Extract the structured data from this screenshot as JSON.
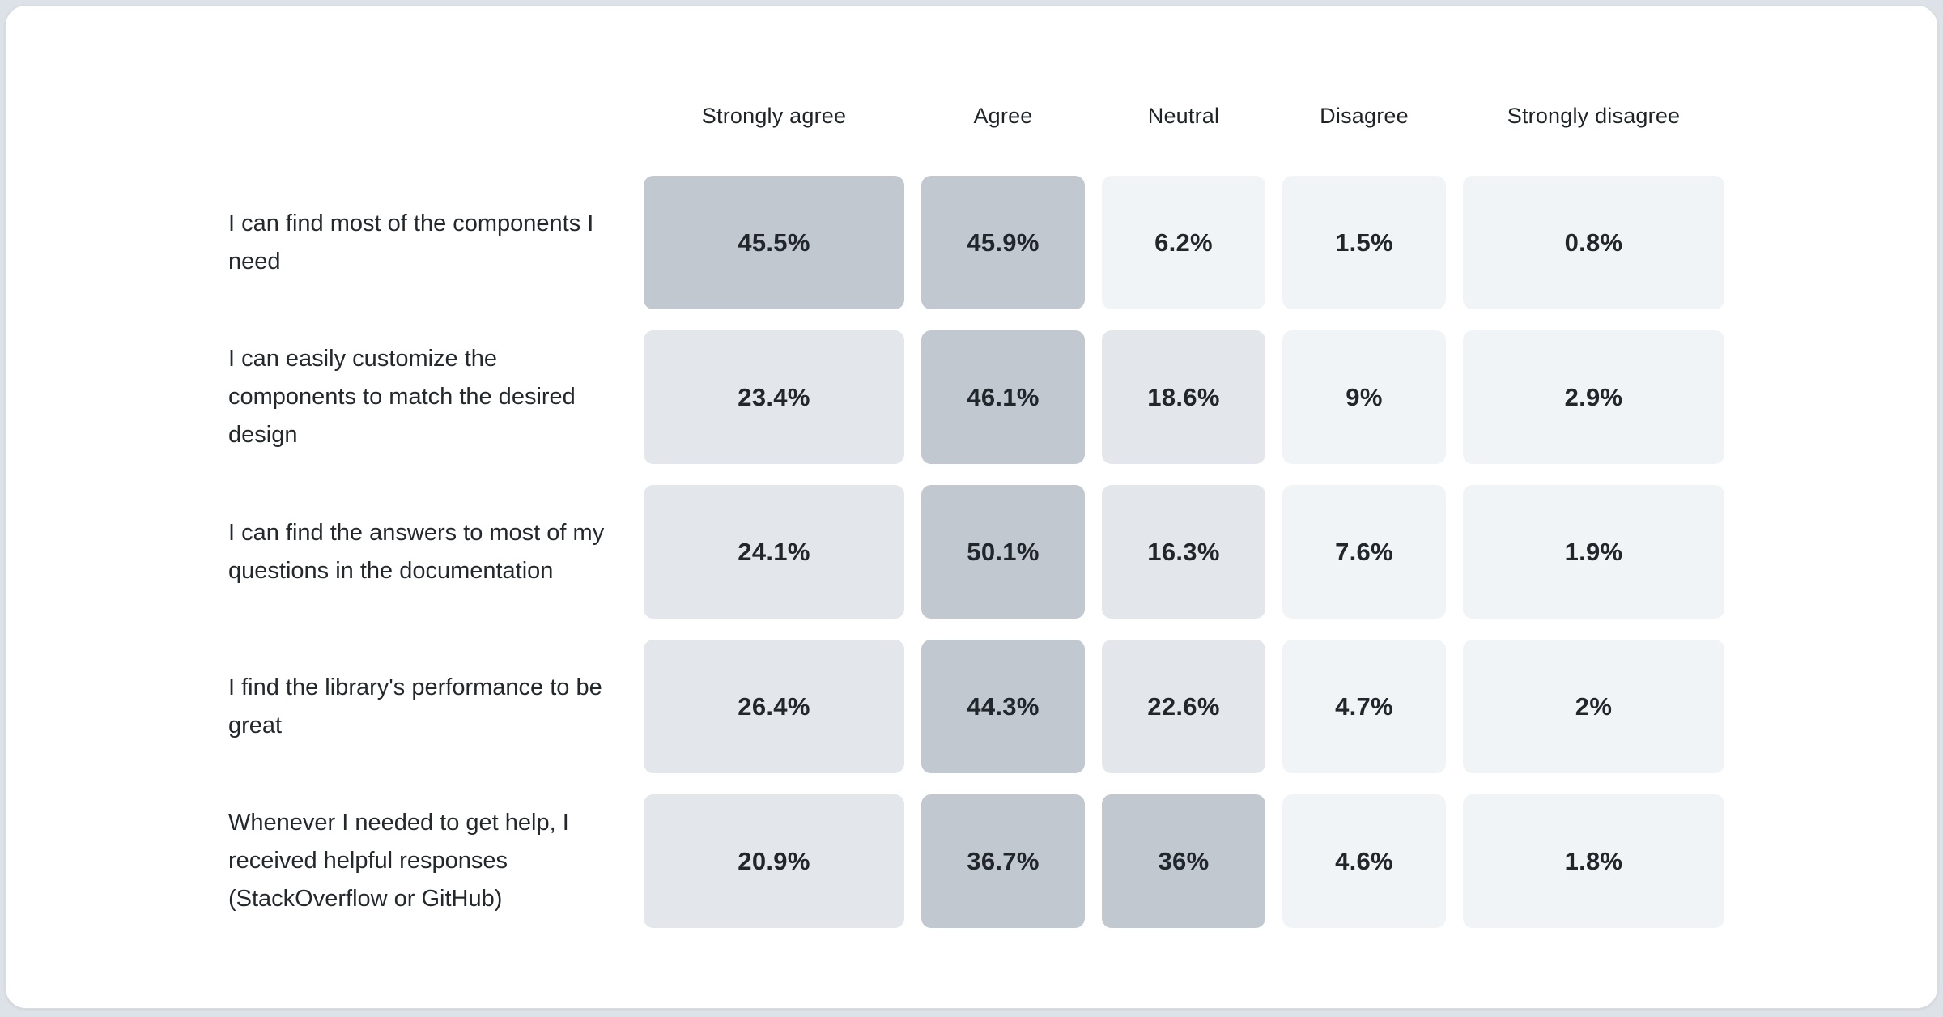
{
  "page": {
    "background": "#dde2e8",
    "card_background": "#ffffff",
    "card_border": "#d9dde2"
  },
  "heatmap": {
    "columns": [
      "Strongly agree",
      "Agree",
      "Neutral",
      "Disagree",
      "Strongly disagree"
    ],
    "rows": [
      {
        "label": "I can find most of the components I need",
        "values": [
          "45.5%",
          "45.9%",
          "6.2%",
          "1.5%",
          "0.8%"
        ]
      },
      {
        "label": "I can easily customize the components to match the desired design",
        "values": [
          "23.4%",
          "46.1%",
          "18.6%",
          "9%",
          "2.9%"
        ]
      },
      {
        "label": "I can find the answers to most of my questions in the documentation",
        "values": [
          "24.1%",
          "50.1%",
          "16.3%",
          "7.6%",
          "1.9%"
        ]
      },
      {
        "label": "I find the library's performance to be great",
        "values": [
          "26.4%",
          "44.3%",
          "22.6%",
          "4.7%",
          "2%"
        ]
      },
      {
        "label": "Whenever I needed to get help, I received helpful responses (StackOverflow or GitHub)",
        "values": [
          "20.9%",
          "36.7%",
          "36%",
          "4.6%",
          "1.8%"
        ]
      }
    ],
    "color_scale": {
      "high": "#c2c8d0",
      "mid": "#e3e6eb",
      "low": "#f1f4f7",
      "high_threshold": 30,
      "mid_threshold": 12
    }
  },
  "chart_data": {
    "type": "heatmap",
    "title": "",
    "columns": [
      "Strongly agree",
      "Agree",
      "Neutral",
      "Disagree",
      "Strongly disagree"
    ],
    "rows": [
      "I can find most of the components I need",
      "I can easily customize the components to match the desired design",
      "I can find the answers to most of my questions in the documentation",
      "I find the library's performance to be great",
      "Whenever I needed to get help, I received helpful responses (StackOverflow or GitHub)"
    ],
    "values": [
      [
        45.5,
        45.9,
        6.2,
        1.5,
        0.8
      ],
      [
        23.4,
        46.1,
        18.6,
        9,
        2.9
      ],
      [
        24.1,
        50.1,
        16.3,
        7.6,
        1.9
      ],
      [
        26.4,
        44.3,
        22.6,
        4.7,
        2
      ],
      [
        20.9,
        36.7,
        36,
        4.6,
        1.8
      ]
    ],
    "value_unit": "%",
    "color_scale": [
      "#f1f4f7",
      "#e3e6eb",
      "#c2c8d0"
    ],
    "legend": "none",
    "grid": "off"
  }
}
